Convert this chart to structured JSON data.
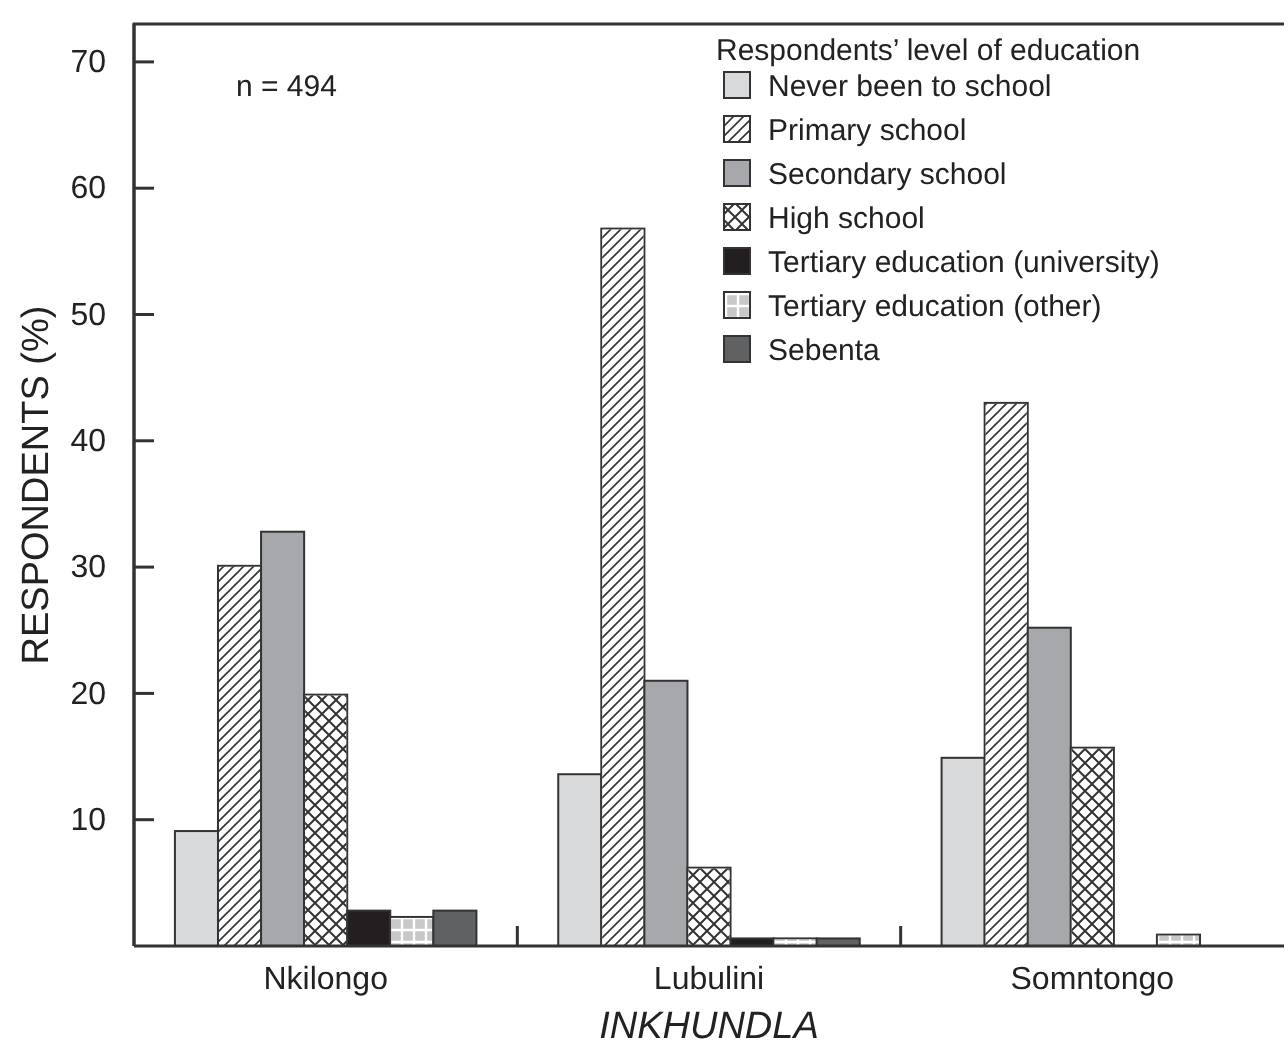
{
  "chart_data": {
    "type": "bar",
    "xlabel": "INKHUNDLA",
    "ylabel": "RESPONDENTS (%)",
    "legend_title": "Respondents’ level of education",
    "annotations": [
      "n = 494"
    ],
    "categories": [
      "Nkilongo",
      "Lubulini",
      "Somntongo"
    ],
    "ylim": [
      0,
      73
    ],
    "yticks": [
      10,
      20,
      30,
      40,
      50,
      60,
      70
    ],
    "grid": false,
    "legend": "top right",
    "series": [
      {
        "name": "Never been to school",
        "color": "#d9dadc",
        "values": [
          9.1,
          13.6,
          14.9
        ]
      },
      {
        "name": "Primary school",
        "color": "#ffffff",
        "values": [
          30.1,
          56.8,
          43.0
        ]
      },
      {
        "name": "Secondary school",
        "color": "#a7a8ab",
        "values": [
          32.8,
          21.0,
          25.2
        ]
      },
      {
        "name": "High school",
        "color": "#ffffff",
        "values": [
          19.9,
          6.2,
          15.7
        ]
      },
      {
        "name": "Tertiary education (university)",
        "color": "#231f20",
        "values": [
          2.8,
          0.6,
          null
        ]
      },
      {
        "name": "Tertiary education (other)",
        "color": "#c8c8c8",
        "values": [
          2.3,
          0.6,
          0.9
        ]
      },
      {
        "name": "Sebenta",
        "color": "#606163",
        "values": [
          2.8,
          0.6,
          null
        ]
      }
    ]
  }
}
